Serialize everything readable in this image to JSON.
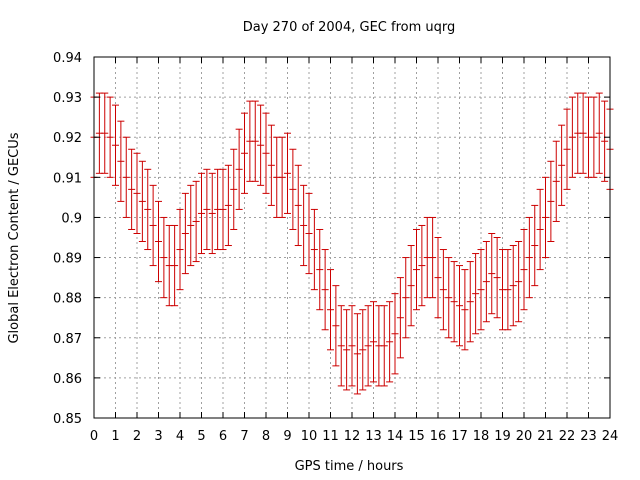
{
  "chart_data": {
    "type": "scatter",
    "title": "Day 270 of 2004, GEC from uqrg",
    "xlabel": "GPS time / hours",
    "ylabel": "Global Electron Content / GECUs",
    "xlim": [
      0,
      24
    ],
    "ylim": [
      0.85,
      0.94
    ],
    "x_ticks": [
      "0",
      "1",
      "2",
      "3",
      "4",
      "5",
      "6",
      "7",
      "8",
      "9",
      "10",
      "11",
      "12",
      "13",
      "14",
      "15",
      "16",
      "17",
      "18",
      "19",
      "20",
      "21",
      "22",
      "23",
      "24"
    ],
    "y_ticks": [
      "0.85",
      "0.86",
      "0.87",
      "0.88",
      "0.89",
      "0.9",
      "0.91",
      "0.92",
      "0.93",
      "0.94"
    ],
    "grid": true,
    "error_bar_half_width": 0.01,
    "series_color": "#cc0000",
    "points": [
      {
        "x": 0.0,
        "y": 0.92
      },
      {
        "x": 0.25,
        "y": 0.921
      },
      {
        "x": 0.5,
        "y": 0.921
      },
      {
        "x": 0.75,
        "y": 0.92
      },
      {
        "x": 1.0,
        "y": 0.918
      },
      {
        "x": 1.25,
        "y": 0.914
      },
      {
        "x": 1.5,
        "y": 0.91
      },
      {
        "x": 1.75,
        "y": 0.907
      },
      {
        "x": 2.0,
        "y": 0.906
      },
      {
        "x": 2.25,
        "y": 0.904
      },
      {
        "x": 2.5,
        "y": 0.902
      },
      {
        "x": 2.75,
        "y": 0.898
      },
      {
        "x": 3.0,
        "y": 0.894
      },
      {
        "x": 3.25,
        "y": 0.89
      },
      {
        "x": 3.5,
        "y": 0.888
      },
      {
        "x": 3.75,
        "y": 0.888
      },
      {
        "x": 4.0,
        "y": 0.892
      },
      {
        "x": 4.25,
        "y": 0.896
      },
      {
        "x": 4.5,
        "y": 0.898
      },
      {
        "x": 4.75,
        "y": 0.899
      },
      {
        "x": 5.0,
        "y": 0.901
      },
      {
        "x": 5.25,
        "y": 0.902
      },
      {
        "x": 5.5,
        "y": 0.901
      },
      {
        "x": 5.75,
        "y": 0.902
      },
      {
        "x": 6.0,
        "y": 0.902
      },
      {
        "x": 6.25,
        "y": 0.903
      },
      {
        "x": 6.5,
        "y": 0.907
      },
      {
        "x": 6.75,
        "y": 0.912
      },
      {
        "x": 7.0,
        "y": 0.916
      },
      {
        "x": 7.25,
        "y": 0.919
      },
      {
        "x": 7.5,
        "y": 0.919
      },
      {
        "x": 7.75,
        "y": 0.918
      },
      {
        "x": 8.0,
        "y": 0.916
      },
      {
        "x": 8.25,
        "y": 0.913
      },
      {
        "x": 8.5,
        "y": 0.91
      },
      {
        "x": 8.75,
        "y": 0.91
      },
      {
        "x": 9.0,
        "y": 0.911
      },
      {
        "x": 9.25,
        "y": 0.907
      },
      {
        "x": 9.5,
        "y": 0.903
      },
      {
        "x": 9.75,
        "y": 0.898
      },
      {
        "x": 10.0,
        "y": 0.896
      },
      {
        "x": 10.25,
        "y": 0.892
      },
      {
        "x": 10.5,
        "y": 0.887
      },
      {
        "x": 10.75,
        "y": 0.882
      },
      {
        "x": 11.0,
        "y": 0.877
      },
      {
        "x": 11.25,
        "y": 0.873
      },
      {
        "x": 11.5,
        "y": 0.868
      },
      {
        "x": 11.75,
        "y": 0.867
      },
      {
        "x": 12.0,
        "y": 0.868
      },
      {
        "x": 12.25,
        "y": 0.866
      },
      {
        "x": 12.5,
        "y": 0.867
      },
      {
        "x": 12.75,
        "y": 0.868
      },
      {
        "x": 13.0,
        "y": 0.869
      },
      {
        "x": 13.25,
        "y": 0.868
      },
      {
        "x": 13.5,
        "y": 0.868
      },
      {
        "x": 13.75,
        "y": 0.869
      },
      {
        "x": 14.0,
        "y": 0.871
      },
      {
        "x": 14.25,
        "y": 0.875
      },
      {
        "x": 14.5,
        "y": 0.88
      },
      {
        "x": 14.75,
        "y": 0.883
      },
      {
        "x": 15.0,
        "y": 0.887
      },
      {
        "x": 15.25,
        "y": 0.888
      },
      {
        "x": 15.5,
        "y": 0.89
      },
      {
        "x": 15.75,
        "y": 0.89
      },
      {
        "x": 16.0,
        "y": 0.885
      },
      {
        "x": 16.25,
        "y": 0.882
      },
      {
        "x": 16.5,
        "y": 0.88
      },
      {
        "x": 16.75,
        "y": 0.879
      },
      {
        "x": 17.0,
        "y": 0.878
      },
      {
        "x": 17.25,
        "y": 0.877
      },
      {
        "x": 17.5,
        "y": 0.879
      },
      {
        "x": 17.75,
        "y": 0.881
      },
      {
        "x": 18.0,
        "y": 0.882
      },
      {
        "x": 18.25,
        "y": 0.884
      },
      {
        "x": 18.5,
        "y": 0.886
      },
      {
        "x": 18.75,
        "y": 0.885
      },
      {
        "x": 19.0,
        "y": 0.882
      },
      {
        "x": 19.25,
        "y": 0.882
      },
      {
        "x": 19.5,
        "y": 0.883
      },
      {
        "x": 19.75,
        "y": 0.884
      },
      {
        "x": 20.0,
        "y": 0.887
      },
      {
        "x": 20.25,
        "y": 0.89
      },
      {
        "x": 20.5,
        "y": 0.893
      },
      {
        "x": 20.75,
        "y": 0.897
      },
      {
        "x": 21.0,
        "y": 0.9
      },
      {
        "x": 21.25,
        "y": 0.904
      },
      {
        "x": 21.5,
        "y": 0.909
      },
      {
        "x": 21.75,
        "y": 0.913
      },
      {
        "x": 22.0,
        "y": 0.917
      },
      {
        "x": 22.25,
        "y": 0.92
      },
      {
        "x": 22.5,
        "y": 0.921
      },
      {
        "x": 22.75,
        "y": 0.921
      },
      {
        "x": 23.0,
        "y": 0.92
      },
      {
        "x": 23.25,
        "y": 0.92
      },
      {
        "x": 23.5,
        "y": 0.921
      },
      {
        "x": 23.75,
        "y": 0.919
      },
      {
        "x": 24.0,
        "y": 0.917
      }
    ]
  }
}
